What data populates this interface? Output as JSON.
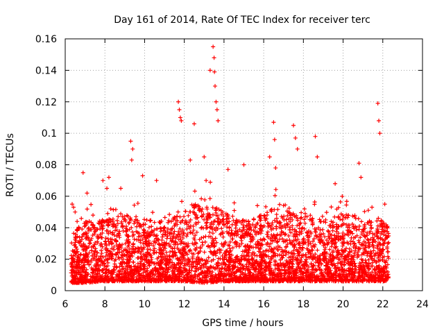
{
  "chart_data": {
    "type": "scatter",
    "title": "Day 161 of 2014, Rate Of TEC Index for receiver terc",
    "xlabel": "GPS time / hours",
    "ylabel": "ROTI / TECUs",
    "xlim": [
      6,
      24
    ],
    "ylim": [
      0,
      0.16
    ],
    "xticks": [
      6,
      8,
      10,
      12,
      14,
      16,
      18,
      20,
      22,
      24
    ],
    "xtick_labels": [
      "6",
      "8",
      "10",
      "12",
      "14",
      "16",
      "18",
      "20",
      "22",
      "24"
    ],
    "yticks": [
      0,
      0.02,
      0.04,
      0.06,
      0.08,
      0.1,
      0.12,
      0.14,
      0.16
    ],
    "ytick_labels": [
      "0",
      "0.02",
      "0.04",
      "0.06",
      "0.08",
      "0.1",
      "0.12",
      "0.14",
      "0.16"
    ],
    "grid": true,
    "marker": "+",
    "color": "#ff0000",
    "series": [
      {
        "name": "ROTI",
        "x": [
          6.35,
          6.42,
          6.5,
          6.6,
          6.9,
          7.1,
          7.4,
          7.9,
          8.1,
          8.2,
          8.8,
          9.3,
          9.35,
          9.4,
          9.9,
          10.6,
          11.7,
          11.75,
          11.8,
          11.85,
          12.3,
          12.5,
          13.0,
          13.1,
          13.3,
          13.45,
          13.5,
          13.52,
          13.55,
          13.6,
          13.65,
          13.7,
          14.2,
          15.0,
          16.3,
          16.5,
          16.55,
          16.6,
          17.5,
          17.6,
          17.7,
          18.6,
          18.7,
          19.6,
          20.8,
          20.9,
          21.75,
          21.8,
          21.85,
          22.1
        ],
        "y": [
          0.055,
          0.053,
          0.05,
          0.044,
          0.075,
          0.062,
          0.048,
          0.07,
          0.065,
          0.072,
          0.065,
          0.095,
          0.083,
          0.09,
          0.073,
          0.07,
          0.12,
          0.115,
          0.11,
          0.108,
          0.083,
          0.106,
          0.085,
          0.07,
          0.14,
          0.155,
          0.148,
          0.139,
          0.13,
          0.12,
          0.115,
          0.108,
          0.077,
          0.08,
          0.085,
          0.107,
          0.096,
          0.078,
          0.105,
          0.097,
          0.09,
          0.098,
          0.085,
          0.068,
          0.081,
          0.072,
          0.119,
          0.108,
          0.1,
          0.055
        ]
      }
    ],
    "bulk_envelope": {
      "description": "dense band of points between x 6.3 and 22.3",
      "x": [
        6.3,
        7,
        8,
        9,
        10,
        11,
        12,
        13,
        14,
        15,
        16,
        17,
        18,
        19,
        20,
        21,
        22,
        22.3
      ],
      "y_low": [
        0.005,
        0.005,
        0.006,
        0.006,
        0.006,
        0.006,
        0.006,
        0.005,
        0.006,
        0.006,
        0.006,
        0.006,
        0.006,
        0.006,
        0.006,
        0.006,
        0.006,
        0.006
      ],
      "y_high": [
        0.035,
        0.045,
        0.045,
        0.05,
        0.045,
        0.045,
        0.05,
        0.06,
        0.05,
        0.045,
        0.05,
        0.055,
        0.05,
        0.045,
        0.05,
        0.045,
        0.045,
        0.04
      ]
    }
  }
}
